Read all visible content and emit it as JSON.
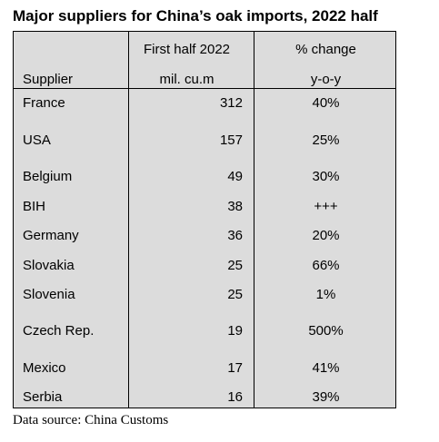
{
  "title": "Major suppliers for China’s oak imports, 2022 half",
  "columns": {
    "supplier": {
      "header_line1": "",
      "header_line2": "Supplier"
    },
    "volume": {
      "header_line1": "First half 2022",
      "header_line2": "mil. cu.m"
    },
    "change": {
      "header_line1": "% change",
      "header_line2": "y-o-y"
    }
  },
  "rows": [
    {
      "supplier": "France",
      "volume": "312",
      "change": "40%"
    },
    {
      "supplier": "USA",
      "volume": "157",
      "change": "25%"
    },
    {
      "supplier": "Belgium",
      "volume": "49",
      "change": "30%"
    },
    {
      "supplier": "BIH",
      "volume": "38",
      "change": "+++"
    },
    {
      "supplier": "Germany",
      "volume": "36",
      "change": "20%"
    },
    {
      "supplier": "Slovakia",
      "volume": "25",
      "change": "66%"
    },
    {
      "supplier": "Slovenia",
      "volume": "25",
      "change": "1%"
    },
    {
      "supplier": "Czech Rep.",
      "volume": "19",
      "change": "500%"
    },
    {
      "supplier": "Mexico",
      "volume": "17",
      "change": "41%"
    },
    {
      "supplier": "Serbia",
      "volume": "16",
      "change": "39%"
    }
  ],
  "footnote": "Data source: China Customs"
}
